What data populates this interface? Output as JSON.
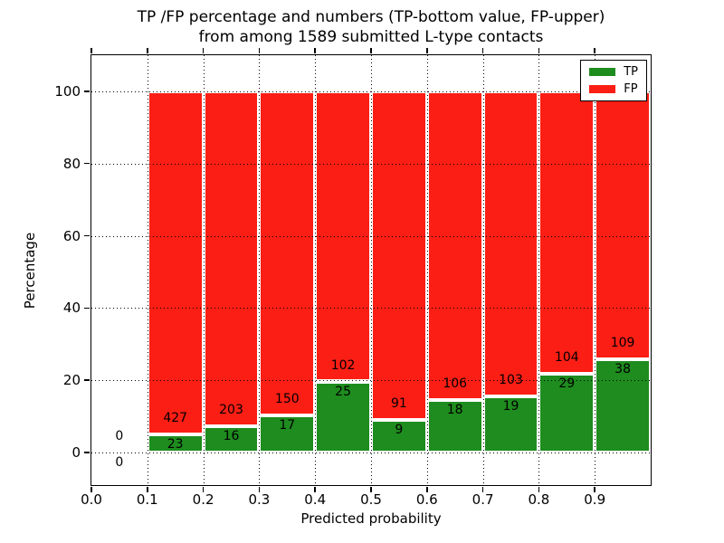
{
  "figure": {
    "title_line1": "TP /FP percentage and numbers (TP-bottom value, FP-upper)",
    "title_line2": "from among 1589 submitted L-type contacts"
  },
  "axes": {
    "xlabel": "Predicted probability",
    "ylabel": "Percentage",
    "xtick_labels": [
      "0.0",
      "0.1",
      "0.2",
      "0.3",
      "0.4",
      "0.5",
      "0.6",
      "0.7",
      "0.8",
      "0.9"
    ],
    "ytick_values": [
      0,
      20,
      40,
      60,
      80,
      100
    ],
    "ylim": [
      -9,
      110
    ],
    "xlim": [
      0.0,
      1.0
    ],
    "grid_style": "dotted"
  },
  "legend": {
    "position": "upper-right",
    "items": [
      {
        "label": "TP",
        "color": "#1e8c1e"
      },
      {
        "label": "FP",
        "color": "#fb1e14"
      }
    ]
  },
  "colors": {
    "tp": "#1e8c1e",
    "fp": "#fb1e14",
    "grid": "#000000",
    "background": "#ffffff"
  },
  "chart_data": {
    "type": "bar",
    "stacked": true,
    "normalized_to_percent": true,
    "title": "TP /FP percentage and numbers (TP-bottom value, FP-upper) from among 1589 submitted L-type contacts",
    "xlabel": "Predicted probability",
    "ylabel": "Percentage",
    "total_submitted_contacts": 1589,
    "bin_width": 0.1,
    "bin_starts": [
      0.0,
      0.1,
      0.2,
      0.3,
      0.4,
      0.5,
      0.6,
      0.7,
      0.8,
      0.9
    ],
    "series": [
      {
        "name": "TP",
        "color": "#1e8c1e",
        "counts": [
          0,
          23,
          16,
          17,
          25,
          9,
          18,
          19,
          29,
          38
        ]
      },
      {
        "name": "FP",
        "color": "#fb1e14",
        "counts": [
          0,
          427,
          203,
          150,
          102,
          91,
          106,
          103,
          104,
          109
        ]
      }
    ],
    "bar_height_rule": "green TP segment height = tp/(tp+fp)*100 percent, red FP segment stacked above to 100 percent",
    "annotations": "each bin labeled with FP count above TP count at the top of the green segment",
    "legend_entries": [
      "TP",
      "FP"
    ],
    "ylim": [
      -9,
      110
    ],
    "grid": true,
    "legend_position": "upper right"
  }
}
